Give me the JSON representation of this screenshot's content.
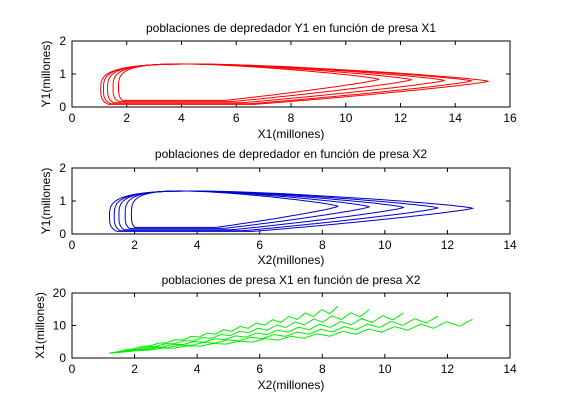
{
  "chart_data": [
    {
      "type": "line",
      "title": "poblaciones de depredador Y1 en función de presa X1",
      "xlabel": "X1(millones)",
      "ylabel": "Y1(millones)",
      "xlim": [
        0,
        16
      ],
      "ylim": [
        0,
        2
      ],
      "xticks": [
        0,
        2,
        4,
        6,
        8,
        10,
        12,
        14,
        16
      ],
      "yticks": [
        0,
        1,
        2
      ],
      "color": "#ff0000",
      "grid": false,
      "loops": [
        {
          "xmin": 1.7,
          "xmax": 11.2,
          "ymin": 0.2,
          "ymax": 1.48
        },
        {
          "xmin": 1.5,
          "xmax": 12.4,
          "ymin": 0.17,
          "ymax": 1.48
        },
        {
          "xmin": 1.3,
          "xmax": 13.6,
          "ymin": 0.13,
          "ymax": 1.48
        },
        {
          "xmin": 1.15,
          "xmax": 14.6,
          "ymin": 0.1,
          "ymax": 1.48
        },
        {
          "xmin": 1.05,
          "xmax": 15.2,
          "ymin": 0.08,
          "ymax": 1.48
        }
      ]
    },
    {
      "type": "line",
      "title": "poblaciones de depredador en función de presa X2",
      "xlabel": "X2(millones)",
      "ylabel": "Y1(millones)",
      "xlim": [
        0,
        14
      ],
      "ylim": [
        0,
        2
      ],
      "xticks": [
        0,
        2,
        4,
        6,
        8,
        10,
        12,
        14
      ],
      "yticks": [
        0,
        1,
        2
      ],
      "color": "#0000cc",
      "grid": false,
      "loops": [
        {
          "xmin": 1.9,
          "xmax": 8.5,
          "ymin": 0.2,
          "ymax": 1.48
        },
        {
          "xmin": 1.7,
          "xmax": 9.5,
          "ymin": 0.17,
          "ymax": 1.48
        },
        {
          "xmin": 1.5,
          "xmax": 10.6,
          "ymin": 0.13,
          "ymax": 1.48
        },
        {
          "xmin": 1.35,
          "xmax": 11.7,
          "ymin": 0.1,
          "ymax": 1.48
        },
        {
          "xmin": 1.2,
          "xmax": 12.8,
          "ymin": 0.08,
          "ymax": 1.48
        }
      ]
    },
    {
      "type": "line",
      "title": "poblaciones de presa X1 en función de presa X2",
      "xlabel": "X2(millones)",
      "ylabel": "X1(millones)",
      "xlim": [
        0,
        14
      ],
      "ylim": [
        0,
        20
      ],
      "xticks": [
        0,
        2,
        4,
        6,
        8,
        10,
        12,
        14
      ],
      "yticks": [
        0,
        10,
        20
      ],
      "color": "#00ee00",
      "grid": false,
      "series": [
        {
          "start": [
            1.2,
            1.5
          ],
          "end": [
            8.5,
            15.0
          ]
        },
        {
          "start": [
            1.2,
            1.5
          ],
          "end": [
            9.5,
            14.0
          ]
        },
        {
          "start": [
            1.2,
            1.5
          ],
          "end": [
            10.6,
            13.0
          ]
        },
        {
          "start": [
            1.2,
            1.5
          ],
          "end": [
            11.7,
            12.0
          ]
        },
        {
          "start": [
            1.2,
            1.5
          ],
          "end": [
            12.8,
            11.0
          ]
        }
      ]
    }
  ]
}
